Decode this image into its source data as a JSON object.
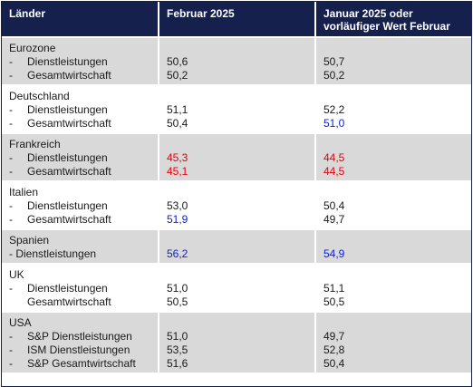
{
  "header": {
    "col1": "Länder",
    "col2": "Februar 2025",
    "col3_line1": "Januar 2025 oder",
    "col3_line2": "vorläufiger Wert Februar"
  },
  "colors": {
    "header_bg": "#15204d",
    "shade": "#d9d9d9",
    "red": "#e8000b",
    "blue": "#0a1fd8"
  },
  "rows": [
    {
      "country": "Eurozone",
      "items": [
        {
          "dash": "-",
          "label": "Dienstleistungen",
          "feb": "50,6",
          "jan": "50,7",
          "feb_color": "",
          "jan_color": ""
        },
        {
          "dash": "-",
          "label": "Gesamtwirtschaft",
          "feb": "50,2",
          "jan": "50,2",
          "feb_color": "",
          "jan_color": ""
        }
      ]
    },
    {
      "country": "Deutschland",
      "items": [
        {
          "dash": "-",
          "label": "Dienstleistungen",
          "feb": "51,1",
          "jan": "52,2",
          "feb_color": "",
          "jan_color": ""
        },
        {
          "dash": "-",
          "label": "Gesamtwirtschaft",
          "feb": "50,4",
          "jan": "51,0",
          "feb_color": "",
          "jan_color": "blue"
        }
      ]
    },
    {
      "country": "Frankreich",
      "items": [
        {
          "dash": "-",
          "label": "Dienstleistungen",
          "feb": "45,3",
          "jan": "44,5",
          "feb_color": "red",
          "jan_color": "red"
        },
        {
          "dash": "-",
          "label": "Gesamtwirtschaft",
          "feb": "45,1",
          "jan": "44,5",
          "feb_color": "red",
          "jan_color": "red"
        }
      ]
    },
    {
      "country": "Italien",
      "items": [
        {
          "dash": "-",
          "label": "Dienstleistungen",
          "feb": "53,0",
          "jan": "50,4",
          "feb_color": "",
          "jan_color": ""
        },
        {
          "dash": "-",
          "label": "Gesamtwirtschaft",
          "feb": "51,9",
          "jan": "49,7",
          "feb_color": "blue",
          "jan_color": ""
        }
      ]
    },
    {
      "country": "Spanien",
      "items": [
        {
          "dash": "",
          "label": "- Dienstleistungen",
          "feb": "56,2",
          "jan": "54,9",
          "feb_color": "blue",
          "jan_color": "blue"
        }
      ]
    },
    {
      "country": "UK",
      "items": [
        {
          "dash": "-",
          "label": "Dienstleistungen",
          "feb": "51,0",
          "jan": "51,1",
          "feb_color": "",
          "jan_color": ""
        },
        {
          "dash": "",
          "label": "Gesamtwirtschaft",
          "feb": "50,5",
          "jan": "50,5",
          "feb_color": "",
          "jan_color": "",
          "indent": true
        }
      ]
    },
    {
      "country": "USA",
      "items": [
        {
          "dash": "-",
          "label": "S&P Dienstleistungen",
          "feb": "51,0",
          "jan": "49,7",
          "feb_color": "",
          "jan_color": ""
        },
        {
          "dash": "-",
          "label": "ISM Dienstleistungen",
          "feb": "53,5",
          "jan": "52,8",
          "feb_color": "",
          "jan_color": ""
        },
        {
          "dash": "-",
          "label": "S&P Gesamtwirtschaft",
          "feb": "51,6",
          "jan": "50,4",
          "feb_color": "",
          "jan_color": ""
        }
      ]
    }
  ]
}
